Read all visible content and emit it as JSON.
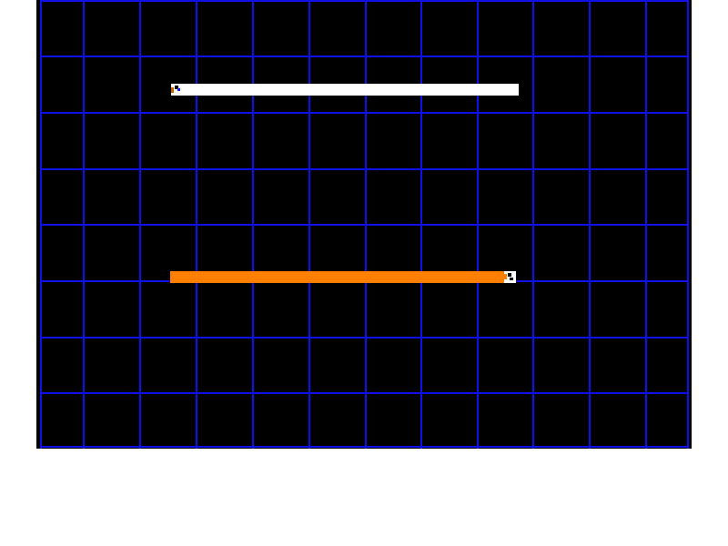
{
  "game": {
    "type": "light-cycle arena",
    "colors": {
      "background": "#000000",
      "grid_lines": "#1010e8",
      "page": "#ffffff"
    },
    "players": [
      {
        "id": "white",
        "trail_color": "#ffffff",
        "heading": "left"
      },
      {
        "id": "orange",
        "trail_color": "#ff8000",
        "heading": "right"
      }
    ]
  }
}
